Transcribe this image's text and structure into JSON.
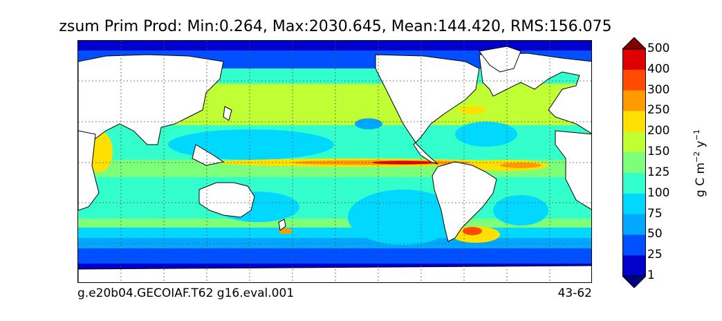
{
  "title": "zsum Prim Prod: Min:0.264, Max:2030.645, Mean:144.420, RMS:156.075",
  "footer": {
    "left": "g.e20b04.GECOIAF.T62 g16.eval.001",
    "right": "43-62"
  },
  "colorbar": {
    "units_base": "g C m",
    "units_exp1": "−2",
    "units_mid": " y",
    "units_exp2": "−1",
    "levels": [
      "1",
      "25",
      "50",
      "75",
      "100",
      "125",
      "150",
      "200",
      "250",
      "300",
      "400",
      "500"
    ],
    "colors": [
      "#000080",
      "#0000cd",
      "#0050ff",
      "#00a8ff",
      "#00d8ff",
      "#33ffcc",
      "#7dff7a",
      "#bfff33",
      "#ffe000",
      "#ff9a00",
      "#ff4a00",
      "#e00000",
      "#800000"
    ]
  },
  "palette": {
    "land": "#ffffff",
    "coast": "#000000",
    "grid": "#555555"
  }
}
